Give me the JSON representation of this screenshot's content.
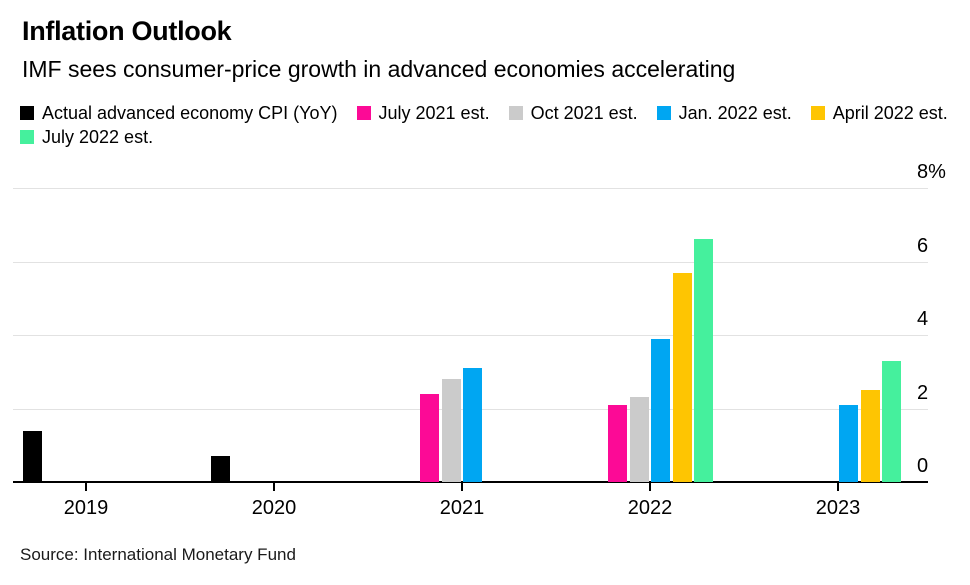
{
  "header": {
    "title": "Inflation Outlook",
    "subtitle": "IMF sees consumer-price growth in advanced economies accelerating"
  },
  "footer": {
    "source": "Source: International Monetary Fund"
  },
  "colors": {
    "actual": "#000000",
    "july_2021": "#fc0a96",
    "oct_2021": "#cbcbcb",
    "jan_2022": "#00a6f2",
    "april_2022": "#fec502",
    "july_2022": "#45f09d",
    "gridline": "#e2e2e2",
    "axis": "#000000",
    "background": "#ffffff"
  },
  "chart_data": {
    "type": "bar",
    "title": "Inflation Outlook",
    "subtitle": "IMF sees consumer-price growth in advanced economies accelerating",
    "categories": [
      "2019",
      "2020",
      "2021",
      "2022",
      "2023"
    ],
    "series": [
      {
        "id": "actual",
        "name": "Actual advanced economy CPI (YoY)",
        "color": "#000000",
        "values": [
          1.4,
          0.7,
          null,
          null,
          null
        ]
      },
      {
        "id": "july-2021",
        "name": "July 2021 est.",
        "color": "#fc0a96",
        "values": [
          null,
          null,
          2.4,
          2.1,
          null
        ]
      },
      {
        "id": "oct-2021",
        "name": "Oct 2021 est.",
        "color": "#cbcbcb",
        "values": [
          null,
          null,
          2.8,
          2.3,
          null
        ]
      },
      {
        "id": "jan-2022",
        "name": "Jan. 2022 est.",
        "color": "#00a6f2",
        "values": [
          null,
          null,
          3.1,
          3.9,
          2.1
        ]
      },
      {
        "id": "april-2022",
        "name": "April 2022 est.",
        "color": "#fec502",
        "values": [
          null,
          null,
          null,
          5.7,
          2.5
        ]
      },
      {
        "id": "july-2022",
        "name": "July 2022 est.",
        "color": "#45f09d",
        "values": [
          null,
          null,
          null,
          6.6,
          3.3
        ]
      }
    ],
    "yaxis": {
      "unit": "%",
      "ylim": [
        0,
        8
      ],
      "gridlines": [
        2,
        4,
        6,
        8
      ],
      "ticks": [
        {
          "value": 8,
          "label": "8%"
        },
        {
          "value": 6,
          "label": "6"
        },
        {
          "value": 4,
          "label": "4"
        },
        {
          "value": 2,
          "label": "2"
        },
        {
          "value": 0,
          "label": "0"
        }
      ]
    },
    "xlabel": "",
    "ylabel": "",
    "grid": true,
    "legend_position": "top"
  }
}
